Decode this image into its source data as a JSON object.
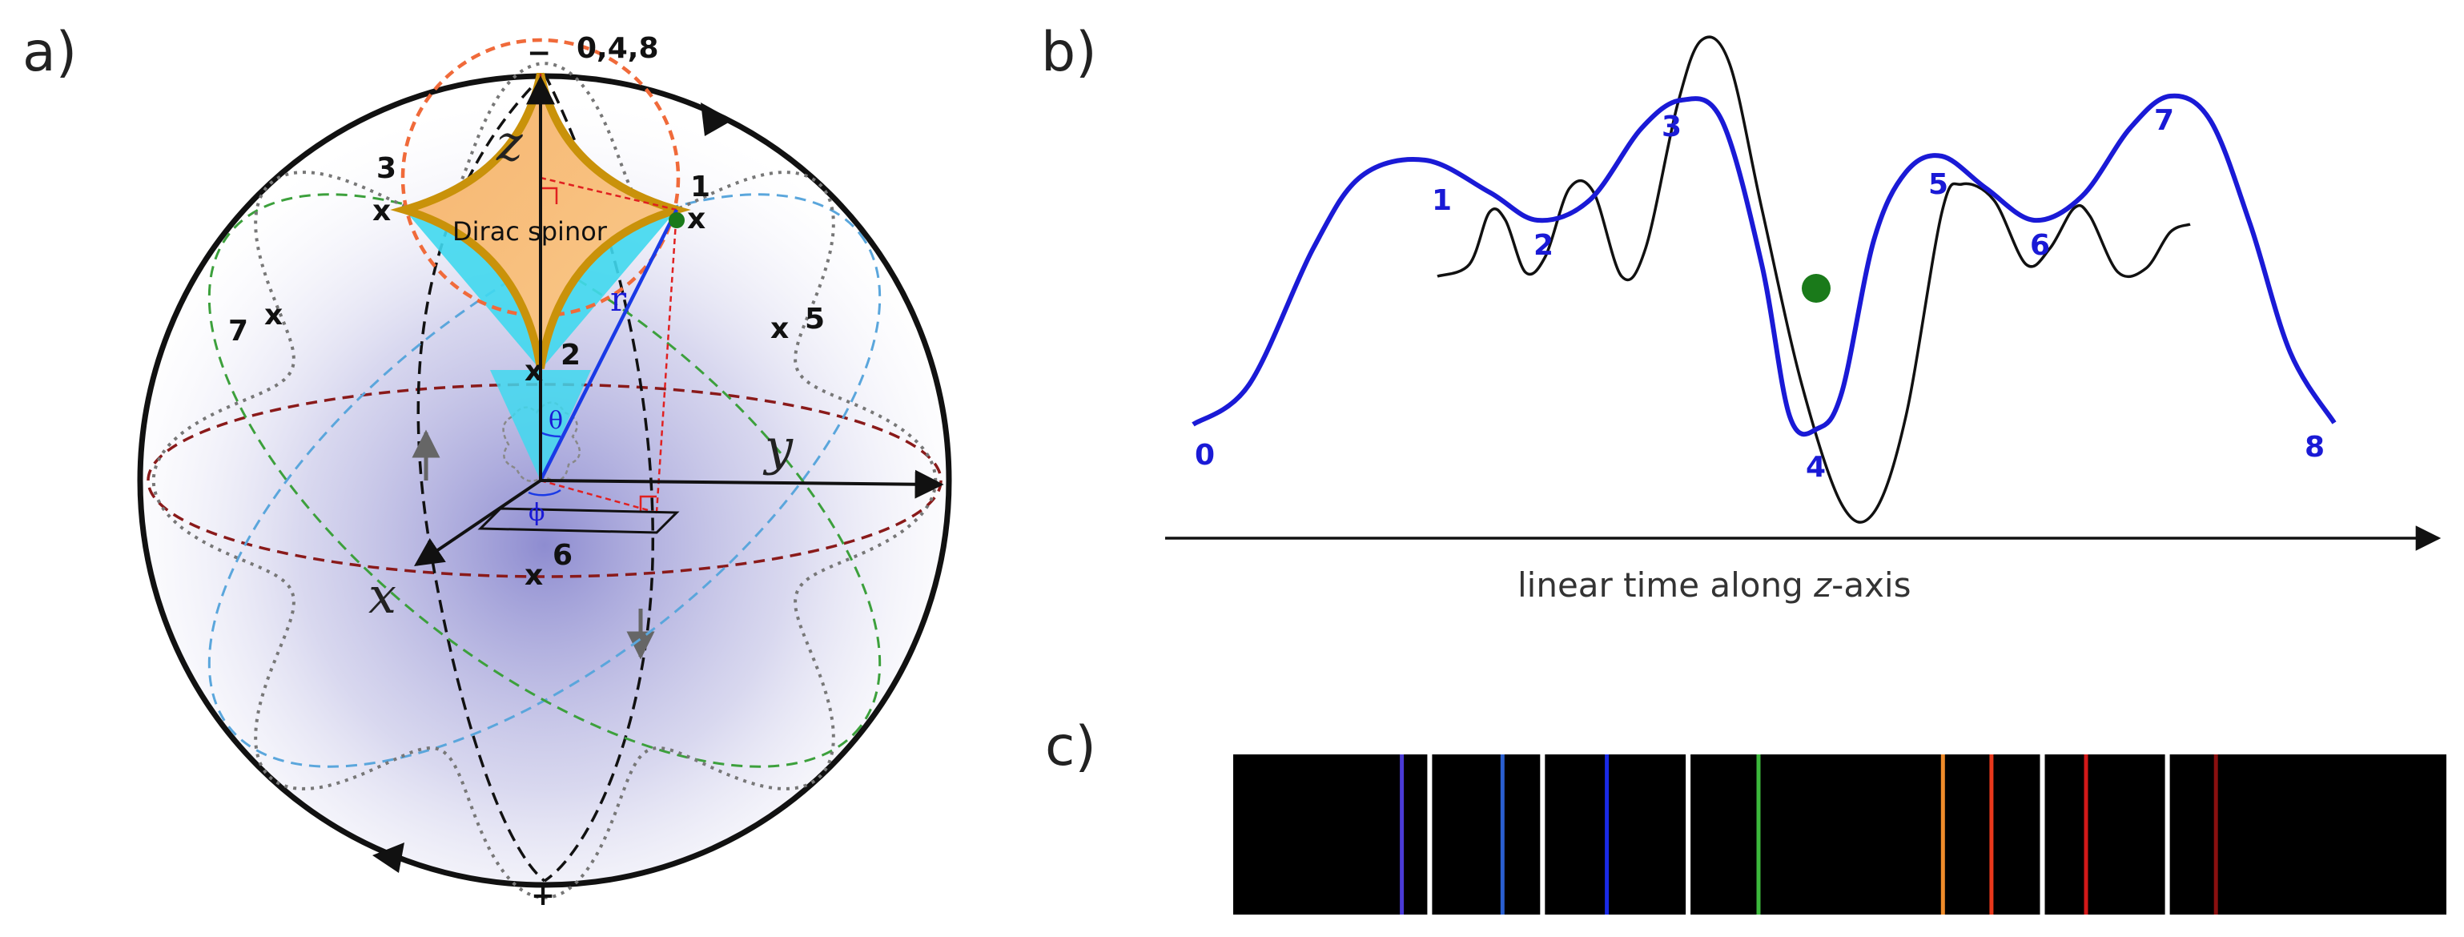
{
  "panels": {
    "a": {
      "label": "a)"
    },
    "b": {
      "label": "b)"
    },
    "c": {
      "label": "c)"
    }
  },
  "sphere": {
    "top_marker": "−",
    "top_points": "0,4,8",
    "bottom_marker": "+",
    "axis_z": "z",
    "axis_y": "y",
    "axis_x": "x",
    "radius_label": "r",
    "theta_label": "θ",
    "phi_label": "ϕ",
    "spinor_label": "Dirac spinor",
    "points": [
      "1",
      "2",
      "3",
      "5",
      "6",
      "7"
    ],
    "point_marker": "x"
  },
  "waveform": {
    "caption_prefix": "linear time along ",
    "caption_var": "z",
    "caption_suffix": "-axis",
    "labels": [
      "0",
      "1",
      "2",
      "3",
      "4",
      "5",
      "6",
      "7",
      "8"
    ],
    "colors": {
      "blue_curve": "#1a1ad6",
      "black_curve": "#111111",
      "marker": "#1a7a1a"
    }
  },
  "spectrum": {
    "background": "#000000",
    "lines": [
      {
        "position": 0.139,
        "color": "#4a3ad6"
      },
      {
        "position": 0.222,
        "color": "#2a5fd0"
      },
      {
        "position": 0.308,
        "color": "#1a2ae6"
      },
      {
        "position": 0.433,
        "color": "#3cb83c"
      },
      {
        "position": 0.585,
        "color": "#f08c2a"
      },
      {
        "position": 0.625,
        "color": "#e8381c"
      },
      {
        "position": 0.703,
        "color": "#d21818"
      },
      {
        "position": 0.81,
        "color": "#8a1010"
      }
    ],
    "gaps": [
      0.162,
      0.255,
      0.375,
      0.667,
      0.77
    ]
  }
}
